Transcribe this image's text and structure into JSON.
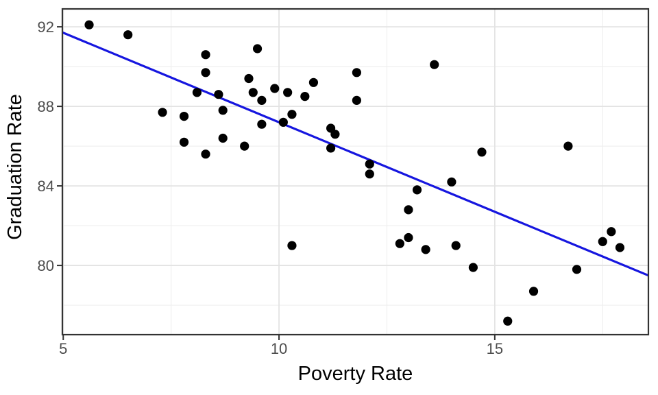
{
  "chart_data": {
    "type": "scatter",
    "title": "",
    "xlabel": "Poverty Rate",
    "ylabel": "Graduation Rate",
    "x_ticks": [
      5,
      10,
      15
    ],
    "y_ticks": [
      80,
      84,
      88,
      92
    ],
    "x_minor_gridlines": [
      7.5,
      12.5,
      17.5
    ],
    "y_minor_gridlines": [
      78,
      82,
      86,
      90
    ],
    "xlim": [
      4.98,
      18.56
    ],
    "ylim": [
      76.52,
      92.9
    ],
    "grid": "on",
    "legend": "none",
    "points": [
      [
        5.6,
        92.1
      ],
      [
        6.5,
        91.6
      ],
      [
        8.3,
        90.6
      ],
      [
        9.5,
        90.9
      ],
      [
        8.3,
        89.7
      ],
      [
        9.3,
        89.4
      ],
      [
        8.1,
        88.7
      ],
      [
        8.6,
        88.6
      ],
      [
        9.4,
        88.7
      ],
      [
        9.6,
        88.3
      ],
      [
        9.9,
        88.9
      ],
      [
        10.2,
        88.7
      ],
      [
        10.6,
        88.5
      ],
      [
        10.8,
        89.2
      ],
      [
        7.3,
        87.7
      ],
      [
        7.8,
        87.5
      ],
      [
        8.7,
        87.8
      ],
      [
        9.6,
        87.1
      ],
      [
        10.1,
        87.2
      ],
      [
        10.3,
        87.6
      ],
      [
        7.8,
        86.2
      ],
      [
        8.7,
        86.4
      ],
      [
        8.3,
        85.6
      ],
      [
        9.2,
        86.0
      ],
      [
        11.8,
        89.7
      ],
      [
        11.8,
        88.3
      ],
      [
        11.2,
        86.9
      ],
      [
        11.3,
        86.6
      ],
      [
        11.2,
        85.9
      ],
      [
        12.1,
        85.1
      ],
      [
        12.1,
        84.6
      ],
      [
        13.2,
        83.8
      ],
      [
        10.3,
        81.0
      ],
      [
        13.6,
        90.1
      ],
      [
        14.0,
        84.2
      ],
      [
        14.7,
        85.7
      ],
      [
        16.7,
        86.0
      ],
      [
        13.0,
        82.8
      ],
      [
        12.8,
        81.1
      ],
      [
        13.0,
        81.4
      ],
      [
        13.4,
        80.8
      ],
      [
        14.1,
        81.0
      ],
      [
        14.5,
        79.9
      ],
      [
        15.9,
        78.7
      ],
      [
        15.3,
        77.2
      ],
      [
        16.9,
        79.8
      ],
      [
        17.5,
        81.2
      ],
      [
        17.7,
        81.7
      ],
      [
        17.9,
        80.9
      ]
    ],
    "trendline": {
      "type": "linear",
      "slope": -0.9,
      "intercept": 96.2,
      "x_start": 4.98,
      "x_end": 18.56
    },
    "colors": {
      "point": "#000000",
      "trend": "#1616DF",
      "grid_major": "#E3E3E3",
      "grid_minor": "#EFEFEF",
      "panel_border": "#333333",
      "tick": "#333333",
      "tick_label": "#4d4d4d",
      "axis_title": "#000000",
      "background": "#ffffff"
    }
  }
}
